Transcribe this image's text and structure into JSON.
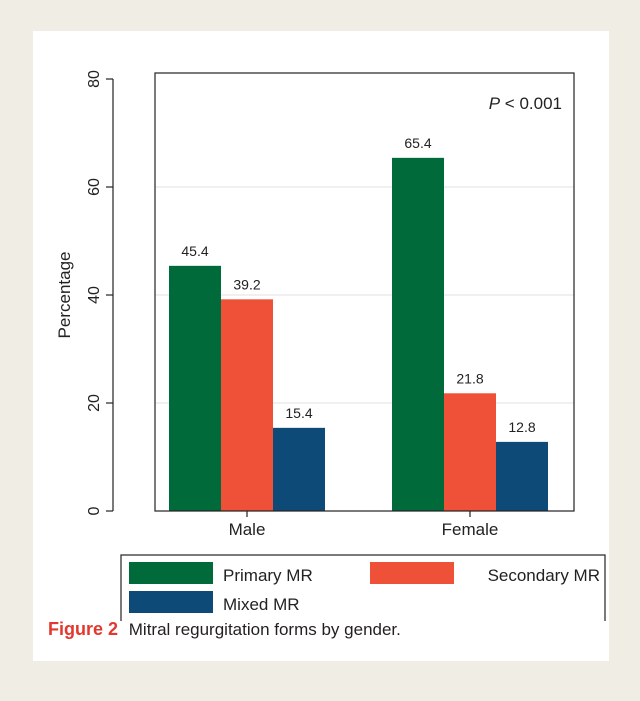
{
  "chart_data": {
    "type": "bar",
    "categories": [
      "Male",
      "Female"
    ],
    "series": [
      {
        "name": "Primary MR",
        "values": [
          45.4,
          65.4
        ],
        "color": "#006a3a"
      },
      {
        "name": "Secondary MR",
        "values": [
          39.2,
          21.8
        ],
        "color": "#ef5138"
      },
      {
        "name": "Mixed MR",
        "values": [
          15.4,
          12.8
        ],
        "color": "#0e4a78"
      }
    ],
    "ylabel": "Percentage",
    "xlabel": "",
    "ylim": [
      0,
      80
    ],
    "yticks": [
      0,
      20,
      40,
      60,
      80
    ],
    "grid": true,
    "annotation": {
      "italic": "P",
      "rest": " < 0.001"
    },
    "legend_position": "bottom"
  },
  "caption": {
    "label": "Figure 2",
    "text": "Mitral regurgitation forms by gender."
  }
}
